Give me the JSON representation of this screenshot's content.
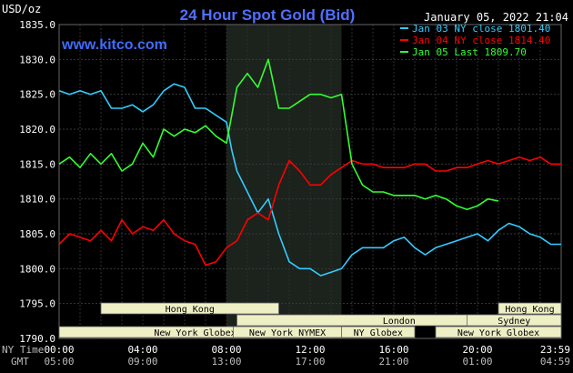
{
  "chart_data": {
    "type": "line",
    "title": "24 Hour Spot Gold (Bid)",
    "watermark": "www.kitco.com",
    "timestamp": "January 05, 2022 21:04",
    "y_unit": "USD/oz",
    "ylim": [
      1790,
      1835
    ],
    "yticks": [
      "1835.0",
      "1830.0",
      "1825.0",
      "1820.0",
      "1815.0",
      "1810.0",
      "1805.0",
      "1800.0",
      "1795.0",
      "1790.0"
    ],
    "x_row_label": "NY Time",
    "x_row2_label": "GMT",
    "x_ticks": [
      "00:00",
      "04:00",
      "08:00",
      "12:00",
      "16:00",
      "20:00",
      "23:59"
    ],
    "x_ticks_gmt": [
      "05:00",
      "09:00",
      "13:00",
      "17:00",
      "21:00",
      "01:00",
      "04:59"
    ],
    "grid": true,
    "legend_position": "top-right",
    "highlight_region_hours": [
      8.0,
      13.5
    ],
    "markets": [
      {
        "name": "Hong Kong",
        "row": 0,
        "start": 2.0,
        "end": 10.5
      },
      {
        "name": "Hong Kong",
        "row": 0,
        "start": 21.0,
        "end": 24.0
      },
      {
        "name": "London",
        "row": 1,
        "start": 8.5,
        "end": 26.0
      },
      {
        "name": "Sydney",
        "row": 1,
        "start": 19.5,
        "end": 29.0
      },
      {
        "name": "New York Globex",
        "row": 2,
        "start": 0,
        "end": 13.0
      },
      {
        "name": "New York NYMEX",
        "row": 2,
        "start": 8.33,
        "end": 13.5
      },
      {
        "name": "NY Globex",
        "row": 2,
        "start": 13.5,
        "end": 17.0
      },
      {
        "name": "New York Globex",
        "row": 2,
        "start": 18.0,
        "end": 24.0
      }
    ],
    "series": [
      {
        "name": "Jan 03 NY close 1801.40",
        "color": "#33ccff",
        "x": [
          0,
          0.5,
          1,
          1.5,
          2,
          2.5,
          3,
          3.5,
          4,
          4.5,
          5,
          5.5,
          6,
          6.5,
          7,
          7.5,
          8,
          8.25,
          8.5,
          9,
          9.5,
          10,
          10.5,
          11,
          11.5,
          12,
          12.5,
          13,
          13.5,
          14,
          14.5,
          15,
          15.5,
          16,
          16.5,
          17,
          17.5,
          18,
          18.5,
          19,
          19.5,
          20,
          20.5,
          21,
          21.5,
          22,
          22.5,
          23,
          23.5,
          24
        ],
        "y": [
          1825.5,
          1825,
          1825.5,
          1825,
          1825.5,
          1823,
          1823,
          1823.5,
          1822.5,
          1823.5,
          1825.5,
          1826.5,
          1826,
          1823,
          1823,
          1822,
          1821,
          1817,
          1814,
          1811,
          1808,
          1810,
          1805,
          1801,
          1800,
          1800,
          1799,
          1799.5,
          1800,
          1802,
          1803,
          1803,
          1803,
          1804,
          1804.5,
          1803,
          1802,
          1803,
          1803.5,
          1804,
          1804.5,
          1805,
          1804,
          1805.5,
          1806.5,
          1806,
          1805,
          1804.5,
          1803.5,
          1803.5
        ]
      },
      {
        "name": "Jan 04 NY close 1814.40",
        "color": "#ff0000",
        "x": [
          0,
          0.5,
          1,
          1.5,
          2,
          2.5,
          3,
          3.5,
          4,
          4.5,
          5,
          5.5,
          6,
          6.5,
          7,
          7.5,
          8,
          8.5,
          9,
          9.5,
          10,
          10.5,
          11,
          11.5,
          12,
          12.5,
          13,
          13.5,
          14,
          14.5,
          15,
          15.5,
          16,
          16.5,
          17,
          17.5,
          18,
          18.5,
          19,
          19.5,
          20,
          20.5,
          21,
          21.5,
          22,
          22.5,
          23,
          23.5,
          24
        ],
        "y": [
          1803.5,
          1805,
          1804.5,
          1804,
          1805.5,
          1804,
          1807,
          1805,
          1806,
          1805.5,
          1807,
          1805,
          1804,
          1803.5,
          1800.5,
          1801,
          1803,
          1804,
          1807,
          1808,
          1807,
          1812,
          1815.5,
          1814,
          1812,
          1812,
          1813.5,
          1814.5,
          1815.5,
          1815,
          1815,
          1814.5,
          1814.5,
          1814.5,
          1815,
          1815,
          1814,
          1814,
          1814.5,
          1814.5,
          1815,
          1815.5,
          1815,
          1815.5,
          1816,
          1815.5,
          1816,
          1815,
          1815
        ]
      },
      {
        "name": "Jan 05 Last 1809.70",
        "color": "#33ff33",
        "x": [
          0,
          0.5,
          1,
          1.5,
          2,
          2.5,
          3,
          3.5,
          4,
          4.5,
          5,
          5.5,
          6,
          6.5,
          7,
          7.5,
          8,
          8.25,
          8.5,
          9,
          9.5,
          10,
          10.5,
          11,
          11.5,
          12,
          12.5,
          13,
          13.5,
          14,
          14.5,
          15,
          15.5,
          16,
          16.5,
          17,
          17.5,
          18,
          18.5,
          19,
          19.5,
          20,
          20.5,
          21
        ],
        "y": [
          1815,
          1816,
          1814.5,
          1816.5,
          1815,
          1816.5,
          1814,
          1815,
          1818,
          1816,
          1820,
          1819,
          1820,
          1819.5,
          1820.5,
          1819,
          1818,
          1822,
          1826,
          1828,
          1826,
          1830,
          1823,
          1823,
          1824,
          1825,
          1825,
          1824.5,
          1825,
          1815,
          1812,
          1811,
          1811,
          1810.5,
          1810.5,
          1810.5,
          1810,
          1810.5,
          1810,
          1809,
          1808.5,
          1809,
          1810,
          1809.7
        ]
      }
    ]
  }
}
